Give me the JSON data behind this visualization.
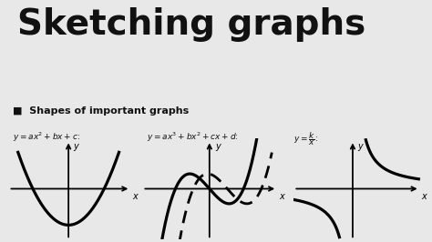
{
  "title": "Sketching graphs",
  "title_fontsize": 28,
  "title_fontweight": "bold",
  "bg_color": "#e8e8e8",
  "panel_bg": "#e8e8e8",
  "section_label": "Shapes of important graphs",
  "formula1": "$y = ax^2 + bx + c$:",
  "formula2": "$y = ax^3 + bx^2 + cx + d$:",
  "formula3": "$y = \\dfrac{k}{x}$:",
  "curve_color": "#000000",
  "figsize": [
    4.74,
    2.66
  ],
  "dpi": 100
}
